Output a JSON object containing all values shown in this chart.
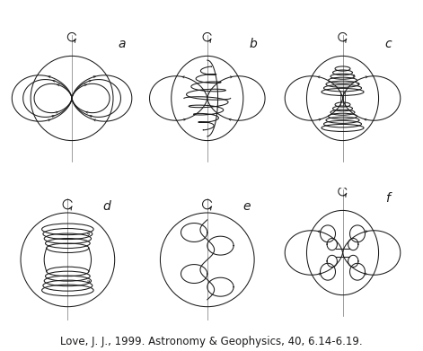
{
  "title": "Love, J. J., 1999. Astronomy & Geophysics, 40, 6.14-6.19.",
  "title_fontsize": 8.5,
  "bg_color": "#ffffff",
  "line_color": "#1a1a1a",
  "lw": 0.75,
  "panels": [
    "a",
    "b",
    "c",
    "d",
    "e",
    "f"
  ],
  "label_fontsize": 10
}
